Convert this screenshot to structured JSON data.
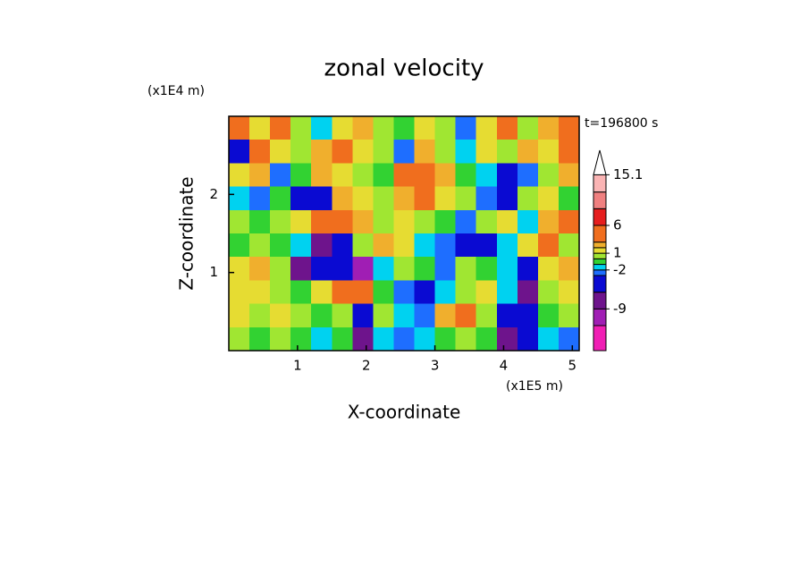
{
  "chart_data": {
    "type": "contour",
    "title": "zonal velocity",
    "xlabel": "X-coordinate",
    "ylabel": "Z-coordinate",
    "xunit": "(x1E5 m)",
    "yunit": "(x1E4 m)",
    "annotation": "t=196800 s",
    "xlim": [
      0,
      5.1
    ],
    "ylim": [
      0,
      3
    ],
    "xticks": [
      1,
      2,
      3,
      4,
      5
    ],
    "yticks": [
      1,
      2
    ],
    "x": [
      0.15,
      0.45,
      0.75,
      1.05,
      1.35,
      1.65,
      1.95,
      2.25,
      2.55,
      2.85,
      3.15,
      3.45,
      3.75,
      4.05,
      4.35,
      4.65,
      4.95
    ],
    "y": [
      2.85,
      2.55,
      2.25,
      1.95,
      1.65,
      1.35,
      1.05,
      0.75,
      0.45,
      0.15
    ],
    "z": [
      [
        4,
        2,
        5,
        1,
        -1,
        2,
        3,
        1,
        0,
        2,
        1,
        -2,
        2,
        4,
        1,
        3,
        5
      ],
      [
        -5,
        4,
        2,
        1,
        3,
        4,
        2,
        1,
        -2,
        3,
        1,
        -1,
        2,
        1,
        3,
        2,
        4
      ],
      [
        2,
        3,
        -2,
        0,
        3,
        2,
        1,
        0,
        4,
        6,
        3,
        0,
        -1,
        -4,
        -2,
        1,
        3
      ],
      [
        -1,
        -2,
        0,
        -4,
        -5,
        3,
        2,
        1,
        3,
        4,
        2,
        1,
        -2,
        -3,
        1,
        2,
        0
      ],
      [
        1,
        0,
        1,
        2,
        4,
        5,
        3,
        1,
        2,
        1,
        0,
        -2,
        1,
        2,
        -1,
        3,
        4
      ],
      [
        0,
        1,
        0,
        -1,
        -6,
        -4,
        1,
        3,
        2,
        -1,
        -2,
        -5,
        -4,
        -1,
        2,
        4,
        1
      ],
      [
        2,
        3,
        1,
        -6,
        -4,
        -3,
        -10,
        -1,
        1,
        0,
        -2,
        1,
        0,
        -1,
        -4,
        2,
        3
      ],
      [
        2,
        2,
        1,
        0,
        2,
        4,
        6,
        0,
        -2,
        -3,
        -1,
        1,
        2,
        -1,
        -6,
        1,
        2
      ],
      [
        2,
        1,
        2,
        1,
        0,
        1,
        -4,
        1,
        -1,
        -2,
        3,
        4,
        1,
        -3,
        -5,
        0,
        1
      ],
      [
        1,
        0,
        1,
        0,
        -1,
        0,
        -6,
        -1,
        -2,
        -1,
        0,
        1,
        0,
        -7,
        -5,
        -1,
        -2
      ]
    ],
    "levels": [
      -12,
      -9,
      -6,
      -3,
      -2,
      -1,
      0,
      1,
      2,
      3,
      6,
      9,
      12,
      15.1
    ],
    "colors": [
      "#f01eb4",
      "#a01eb4",
      "#6e148c",
      "#0a0ad2",
      "#1e6eff",
      "#00d2f0",
      "#32d232",
      "#a0e632",
      "#e6dc32",
      "#f0af2d",
      "#f06e1e",
      "#e61e1e",
      "#f08080",
      "#fab4b4",
      "#ffffff"
    ],
    "colorbar_range": [
      -16.5,
      19.5
    ],
    "colorbar_ticks": [
      15.1,
      6,
      1,
      -2,
      -9
    ]
  }
}
